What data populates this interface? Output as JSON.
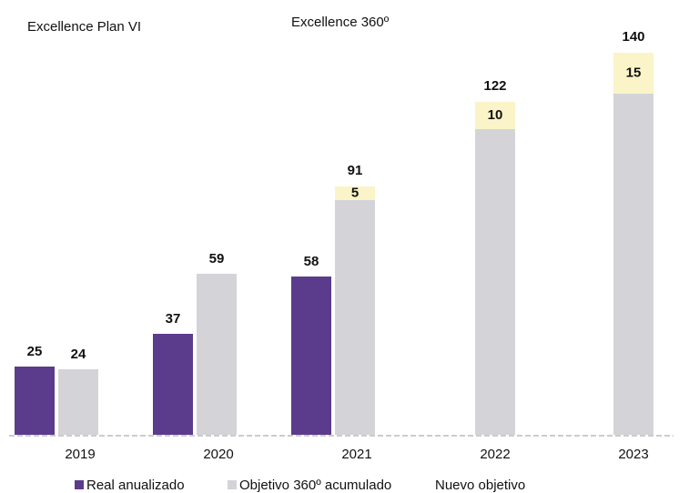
{
  "chart_data": {
    "type": "bar",
    "headers": [
      "Excellence Plan VI",
      "Excellence 360º"
    ],
    "categories": [
      "2019",
      "2020",
      "2021",
      "2022",
      "2023"
    ],
    "series": [
      {
        "name": "Real anualizado",
        "color": "#5b3b8c",
        "values": [
          25,
          37,
          58,
          null,
          null
        ]
      },
      {
        "name": "Objetivo 360º acumulado",
        "color": "#d4d4d8",
        "values": [
          24,
          59,
          86,
          112,
          125
        ]
      },
      {
        "name": "Nuevo objetivo",
        "color": "#faf4c8",
        "values": [
          null,
          null,
          5,
          10,
          15
        ]
      }
    ],
    "totals": [
      null,
      null,
      91,
      122,
      140
    ]
  }
}
